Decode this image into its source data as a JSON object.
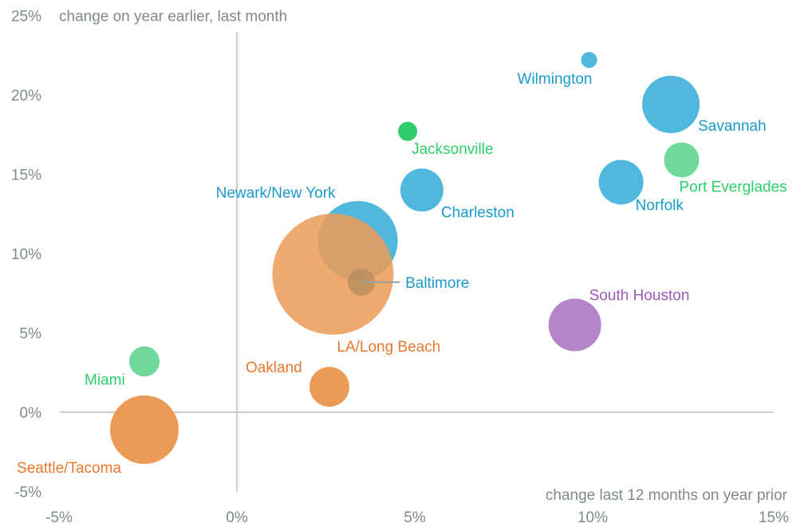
{
  "chart_data": {
    "type": "scatter",
    "subtype": "bubble",
    "title": "",
    "ylabel": "change on year earlier, last month",
    "xlabel": "change last 12 months on year prior",
    "xlim": [
      -5,
      15
    ],
    "ylim": [
      -5,
      25
    ],
    "x_ticks": [
      -5,
      0,
      5,
      10,
      15
    ],
    "y_ticks": [
      -5,
      0,
      5,
      10,
      15,
      20,
      25
    ],
    "x_tick_labels": [
      "-5%",
      "0%",
      "5%",
      "10%",
      "15%"
    ],
    "y_tick_labels": [
      "-5%",
      "0%",
      "5%",
      "10%",
      "15%",
      "20%",
      "25%"
    ],
    "grid": false,
    "zero_lines": true,
    "colors": {
      "blue": "#4fb8dc",
      "blue_text": "#1a9bc9",
      "green": "#6fd99b",
      "green_dark": "#2ecc6a",
      "green_text": "#2ecc6a",
      "orange": "#ec9b57",
      "orange_text": "#e8782e",
      "purple": "#b584c9",
      "purple_text": "#9b59b6",
      "axis_text": "#7f8a8f",
      "axis_line": "#bdbdbd"
    },
    "series": [
      {
        "name": "Wilmington",
        "x": 9.9,
        "y": 22.2,
        "size": 10,
        "color": "blue",
        "label_pos": "below-left"
      },
      {
        "name": "Savannah",
        "x": 12.2,
        "y": 19.4,
        "size": 36,
        "color": "blue",
        "label_pos": "below-right"
      },
      {
        "name": "Port Everglades",
        "x": 12.5,
        "y": 15.9,
        "size": 22,
        "color": "green",
        "label_pos": "below"
      },
      {
        "name": "Norfolk",
        "x": 10.8,
        "y": 14.5,
        "size": 28,
        "color": "blue",
        "label_pos": "below-right"
      },
      {
        "name": "Jacksonville",
        "x": 4.8,
        "y": 17.7,
        "size": 12,
        "color": "green_dark",
        "label_pos": "below-right"
      },
      {
        "name": "Charleston",
        "x": 5.2,
        "y": 14.0,
        "size": 27,
        "color": "blue",
        "label_pos": "below-right"
      },
      {
        "name": "Newark/New York",
        "x": 3.4,
        "y": 10.8,
        "size": 50,
        "color": "blue",
        "label_pos": "above-left"
      },
      {
        "name": "LA/Long Beach",
        "x": 2.7,
        "y": 8.7,
        "size": 76,
        "color": "orange",
        "label_pos": "below-right"
      },
      {
        "name": "Baltimore",
        "x": 3.5,
        "y": 8.2,
        "size": 17,
        "color": "blue",
        "label_pos": "right-leader"
      },
      {
        "name": "South Houston",
        "x": 9.5,
        "y": 5.5,
        "size": 33,
        "color": "purple",
        "label_pos": "above-right"
      },
      {
        "name": "Oakland",
        "x": 2.6,
        "y": 1.6,
        "size": 25,
        "color": "orange",
        "label_pos": "above-left"
      },
      {
        "name": "Miami",
        "x": -2.6,
        "y": 3.2,
        "size": 19,
        "color": "green",
        "label_pos": "below-left"
      },
      {
        "name": "Seattle/Tacoma",
        "x": -2.6,
        "y": -1.1,
        "size": 43,
        "color": "orange",
        "label_pos": "below-left"
      }
    ]
  }
}
